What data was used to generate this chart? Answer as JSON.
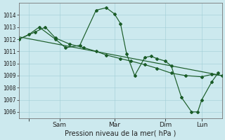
{
  "background_color": "#cce9ee",
  "grid_color": "#a0cdd5",
  "line_color": "#1a5c28",
  "xlabel": "Pression niveau de la mer( hPa )",
  "ylim": [
    1005.5,
    1015.0
  ],
  "yticks": [
    1006,
    1007,
    1008,
    1009,
    1010,
    1011,
    1012,
    1013,
    1014
  ],
  "xlim": [
    0,
    100
  ],
  "xtick_positions": [
    5,
    20,
    47,
    72,
    90
  ],
  "xtick_labels": [
    "",
    "Sam",
    "Mar",
    "Dim",
    "Lun"
  ],
  "series1_x": [
    0,
    8,
    13,
    18,
    25,
    32,
    38,
    43,
    50,
    55,
    62,
    68,
    75,
    82,
    90,
    95,
    100
  ],
  "series1_y": [
    1012.0,
    1012.6,
    1013.0,
    1012.1,
    1011.6,
    1011.3,
    1011.0,
    1010.7,
    1010.4,
    1010.2,
    1009.9,
    1009.6,
    1009.2,
    1009.0,
    1008.9,
    1009.1,
    1009.0
  ],
  "series2_x": [
    0,
    5,
    10,
    18,
    23,
    30,
    38,
    43,
    47,
    50,
    53,
    57,
    62,
    65,
    68,
    72,
    75,
    80,
    85,
    88,
    90,
    95,
    98
  ],
  "series2_y": [
    1012.0,
    1012.4,
    1013.0,
    1012.0,
    1011.3,
    1011.5,
    1014.4,
    1014.6,
    1014.1,
    1013.3,
    1010.8,
    1009.0,
    1010.5,
    1010.6,
    1010.4,
    1010.2,
    1009.8,
    1007.2,
    1006.0,
    1006.0,
    1007.0,
    1008.5,
    1009.2
  ],
  "series3_x": [
    0,
    100
  ],
  "series3_y": [
    1012.2,
    1009.0
  ],
  "ytick_fontsize": 5.5,
  "xtick_fontsize": 6.5,
  "xlabel_fontsize": 7.0,
  "linewidth": 0.85,
  "markersize": 2.0
}
